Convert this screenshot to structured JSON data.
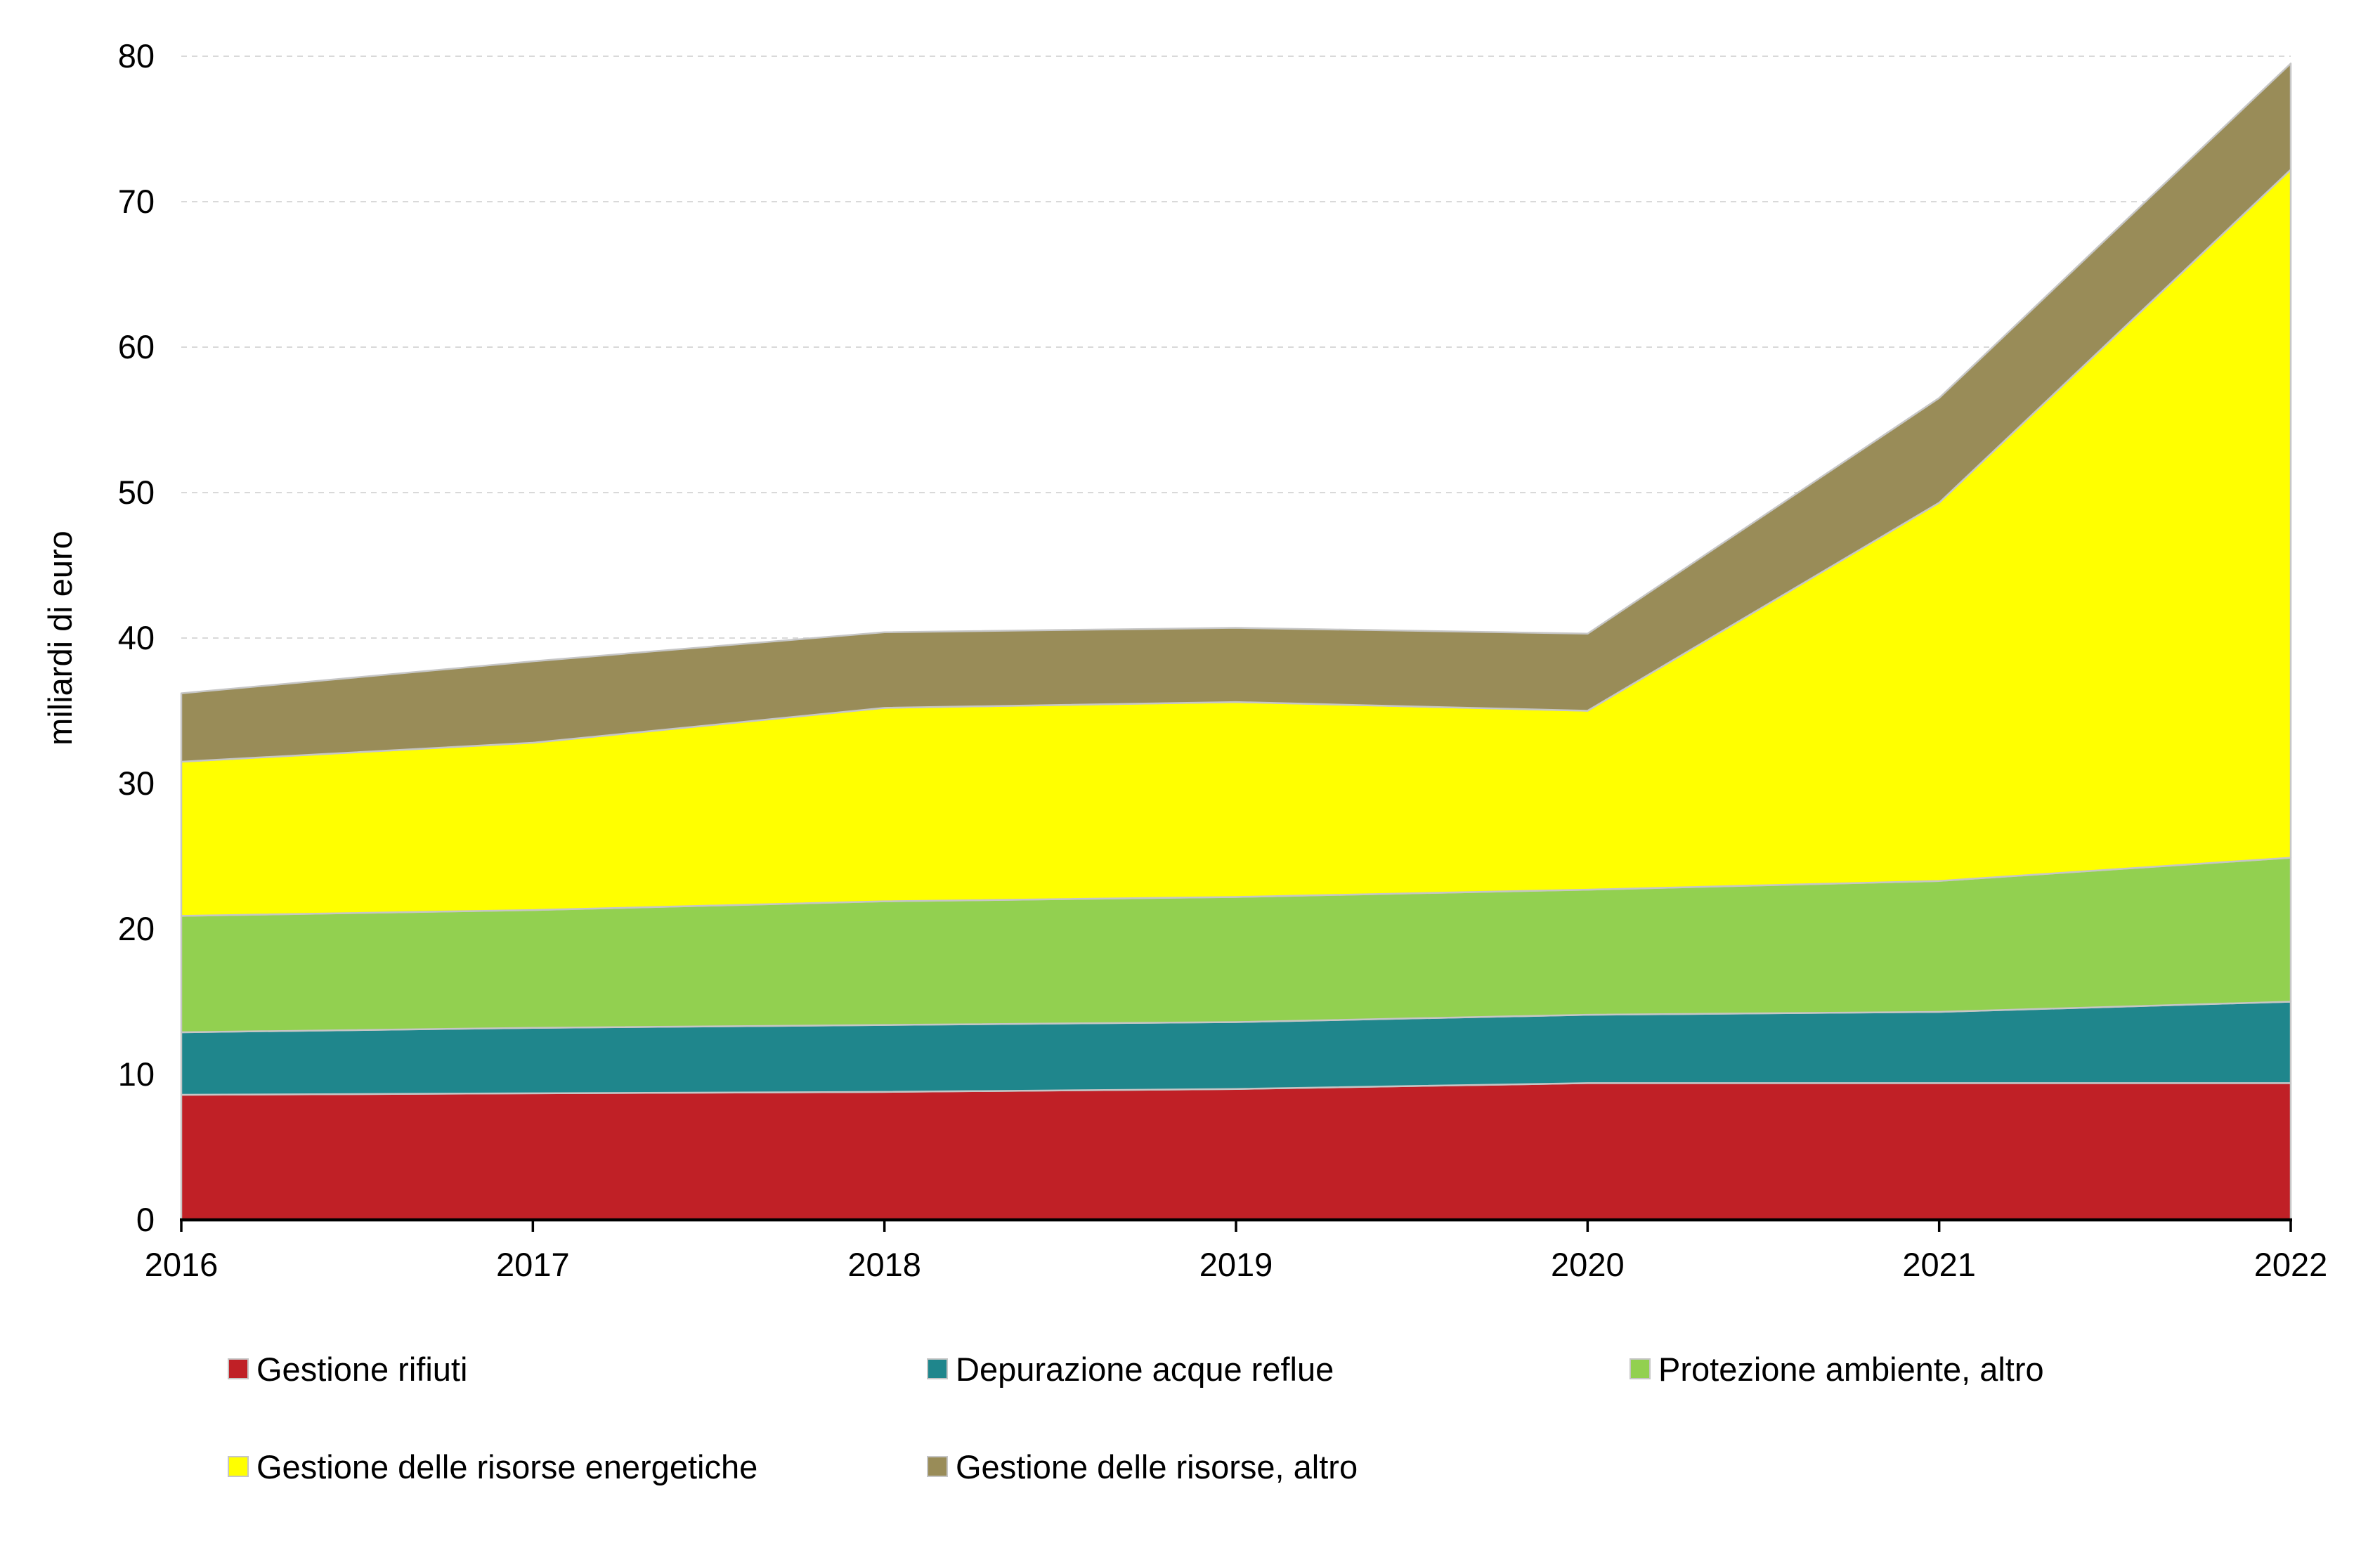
{
  "chart_data": {
    "type": "area",
    "stacked": true,
    "title": "",
    "xlabel": "",
    "ylabel": "miliardi di euro",
    "categories": [
      "2016",
      "2017",
      "2018",
      "2019",
      "2020",
      "2021",
      "2022"
    ],
    "ylim": [
      0,
      80
    ],
    "ytick_interval": 10,
    "yticks": [
      0,
      10,
      20,
      30,
      40,
      50,
      60,
      70,
      80
    ],
    "grid": true,
    "gridline_style": "dashed",
    "legend_position": "bottom",
    "series": [
      {
        "name": "Gestione rifiuti",
        "color": "#C02026",
        "values": [
          8.6,
          8.7,
          8.8,
          9.0,
          9.4,
          9.4,
          9.4
        ]
      },
      {
        "name": "Depurazione acque reflue",
        "color": "#1F868C",
        "values": [
          4.3,
          4.5,
          4.6,
          4.6,
          4.7,
          4.9,
          5.6
        ]
      },
      {
        "name": "Protezione ambiente, altro",
        "color": "#92D050",
        "values": [
          8.0,
          8.1,
          8.5,
          8.6,
          8.6,
          9.0,
          9.9
        ]
      },
      {
        "name": "Gestione delle risorse energetiche",
        "color": "#FFFF00",
        "values": [
          10.6,
          11.5,
          13.3,
          13.4,
          12.3,
          26.0,
          47.3
        ]
      },
      {
        "name": "Gestione delle risorse, altro",
        "color": "#998C58",
        "values": [
          4.7,
          5.6,
          5.2,
          5.1,
          5.3,
          7.2,
          7.3
        ]
      }
    ],
    "stacked_totals": [
      36.2,
      38.4,
      40.4,
      40.7,
      40.3,
      56.5,
      79.5
    ],
    "colors": {
      "background": "#FFFFFF",
      "gridline": "#D9D9D9",
      "axis": "#000000",
      "area_border": "#C6C6C6",
      "text": "#000000"
    }
  }
}
